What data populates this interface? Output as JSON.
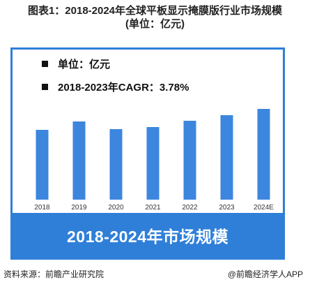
{
  "figure": {
    "title_line1": "图表1：2018-2024年全球平板显示掩膜版行业市场规模",
    "title_line2": "(单位：亿元)"
  },
  "legend": {
    "unit": "单位：亿元",
    "cagr": "2018-2023年CAGR：3.78%"
  },
  "banner": "2018-2024年市场规模",
  "source": "资料来源：前瞻产业研究院",
  "credit": "@前瞻经济学人APP",
  "colors": {
    "bar": "#3d86de",
    "frame": "#2f7fd8",
    "banner": "#2f7fd8"
  },
  "chart_data": {
    "type": "bar",
    "categories": [
      "2018",
      "2019",
      "2020",
      "2021",
      "2022",
      "2023",
      "2024E"
    ],
    "values": [
      100,
      112,
      101,
      104,
      113,
      121,
      130
    ],
    "title": "",
    "xlabel": "",
    "ylabel": "",
    "ylim": [
      0,
      182
    ],
    "grid": false,
    "value_axis_visible": false
  }
}
